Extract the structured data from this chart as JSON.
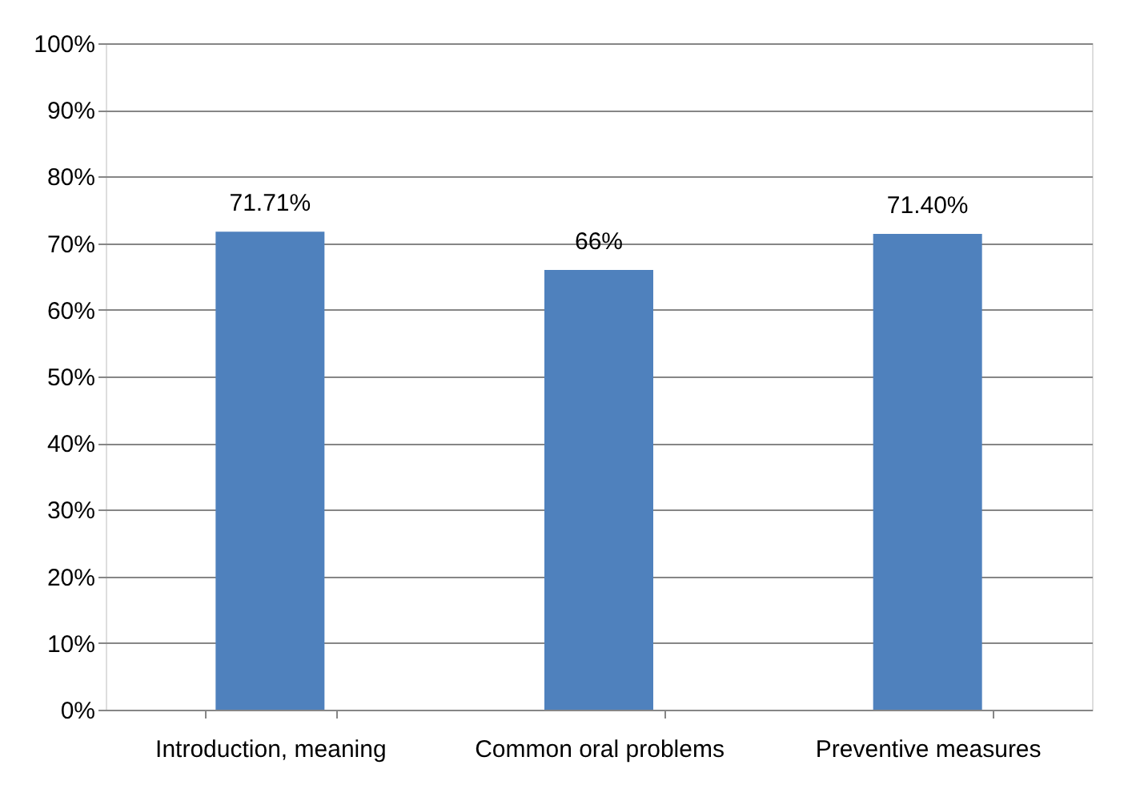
{
  "chart_data": {
    "type": "bar",
    "categories": [
      "Introduction, meaning",
      "Common oral problems",
      "Preventive measures"
    ],
    "values": [
      71.71,
      66,
      71.4
    ],
    "value_labels": [
      "71.71%",
      "66%",
      "71.40%"
    ],
    "color": "#4f81bd",
    "ylim": [
      0,
      100
    ],
    "yticks": [
      {
        "value": 0,
        "label": "0%"
      },
      {
        "value": 10,
        "label": "10%"
      },
      {
        "value": 20,
        "label": "20%"
      },
      {
        "value": 30,
        "label": "30%"
      },
      {
        "value": 40,
        "label": "40%"
      },
      {
        "value": 50,
        "label": "50%"
      },
      {
        "value": 60,
        "label": "60%"
      },
      {
        "value": 70,
        "label": "70%"
      },
      {
        "value": 80,
        "label": "80%"
      },
      {
        "value": 90,
        "label": "90%"
      },
      {
        "value": 100,
        "label": "100%"
      }
    ],
    "grid": "y"
  }
}
